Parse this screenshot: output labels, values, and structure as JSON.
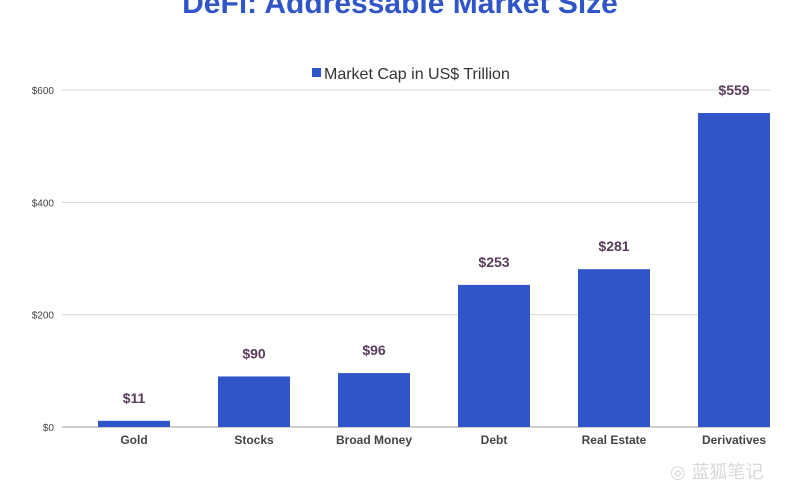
{
  "chart_data": {
    "type": "bar",
    "title": "DeFi: Addressable Market Size",
    "categories": [
      "Gold",
      "Stocks",
      "Broad Money",
      "Debt",
      "Real Estate",
      "Derivatives"
    ],
    "series": [
      {
        "name": "Market Cap in US$ Trillion",
        "values": [
          11,
          90,
          96,
          253,
          281,
          559
        ],
        "data_labels": [
          "$11",
          "$90",
          "$96",
          "$253",
          "$281",
          "$559"
        ]
      }
    ],
    "y_ticks": [
      0,
      200,
      400,
      600
    ],
    "y_tick_labels": [
      "$0",
      "$200",
      "$400",
      "$600"
    ],
    "ylim": [
      0,
      600
    ],
    "grid": true,
    "legend_position": "top-center",
    "colors": {
      "bar": "#2f55c8",
      "grid": "#d9d9d9",
      "title": "#2f55c8",
      "data_label": "#5a3b5d"
    }
  },
  "watermark": {
    "text": "蓝狐笔记",
    "icon": "wechat-icon"
  }
}
